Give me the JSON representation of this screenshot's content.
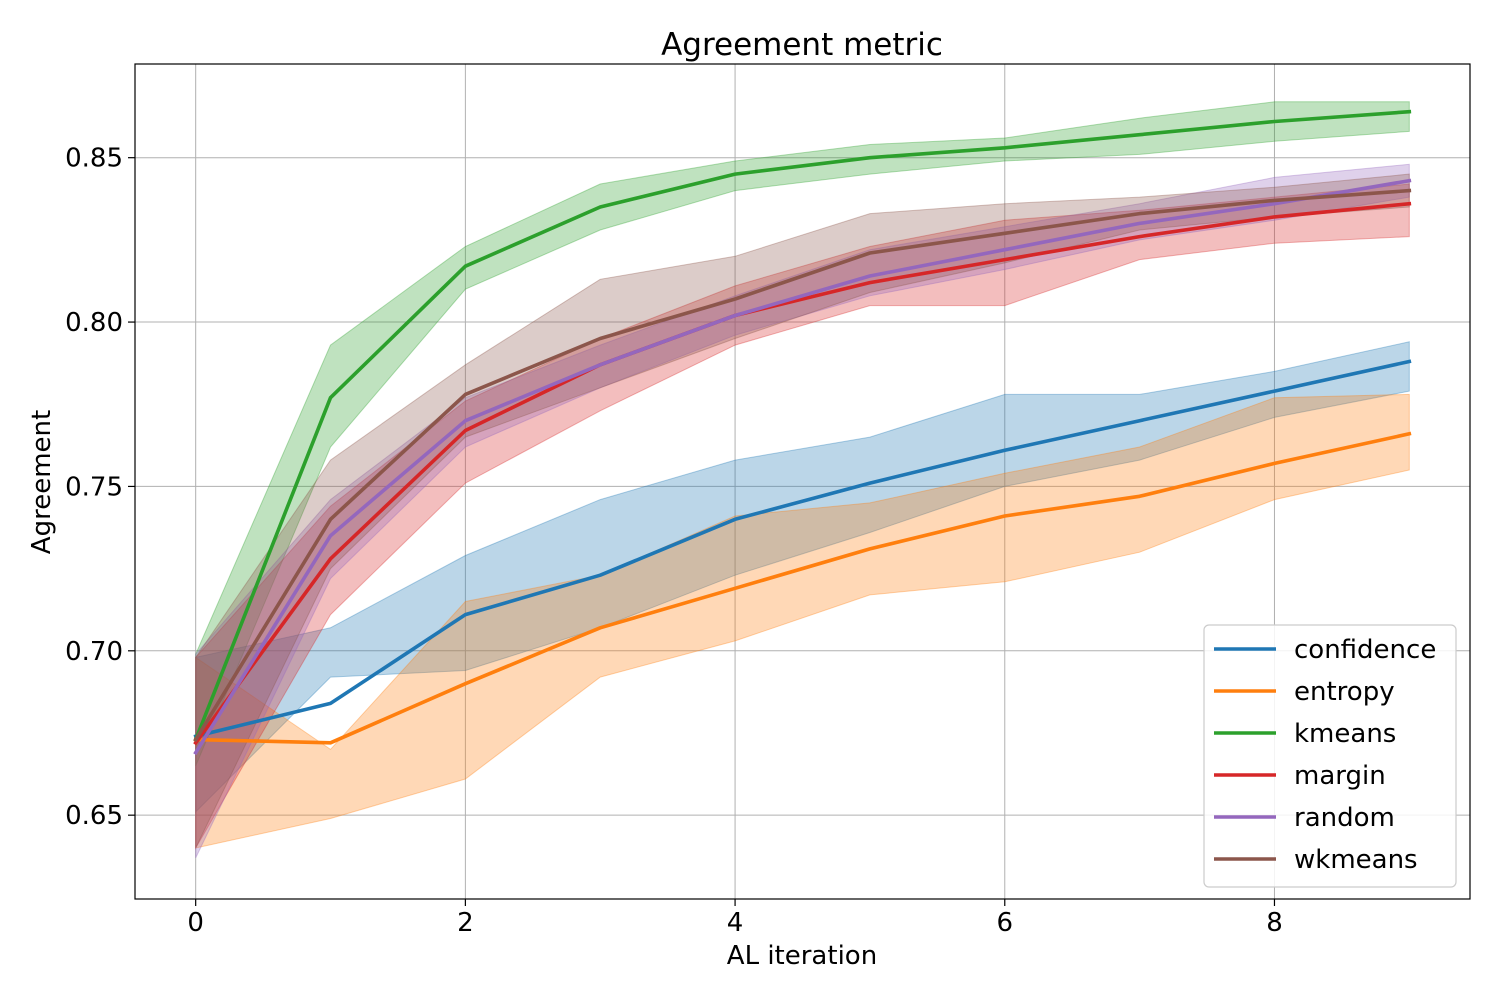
{
  "chart_data": {
    "type": "line",
    "title": "Agreement metric",
    "xlabel": "AL iteration",
    "ylabel": "Agreement",
    "xlim": [
      -0.45,
      9.45
    ],
    "ylim": [
      0.6245,
      0.8785
    ],
    "xticks": [
      0,
      2,
      4,
      6,
      8
    ],
    "xtick_labels": [
      "0",
      "2",
      "4",
      "6",
      "8"
    ],
    "yticks": [
      0.65,
      0.7,
      0.75,
      0.8,
      0.85
    ],
    "ytick_labels": [
      "0.65",
      "0.70",
      "0.75",
      "0.80",
      "0.85"
    ],
    "grid": true,
    "legend_position": "bottom-right",
    "x": [
      0,
      1,
      2,
      3,
      4,
      5,
      6,
      7,
      8,
      9
    ],
    "series": [
      {
        "name": "confidence",
        "color": "#1f77b4",
        "values": [
          0.674,
          0.684,
          0.711,
          0.723,
          0.74,
          0.751,
          0.761,
          0.77,
          0.779,
          0.788
        ],
        "upper": [
          0.698,
          0.707,
          0.729,
          0.746,
          0.758,
          0.765,
          0.778,
          0.778,
          0.785,
          0.794
        ],
        "lower": [
          0.651,
          0.692,
          0.694,
          0.707,
          0.723,
          0.736,
          0.75,
          0.758,
          0.771,
          0.779
        ]
      },
      {
        "name": "entropy",
        "color": "#ff7f0e",
        "values": [
          0.673,
          0.672,
          0.69,
          0.707,
          0.719,
          0.731,
          0.741,
          0.747,
          0.757,
          0.766
        ],
        "upper": [
          0.698,
          0.67,
          0.715,
          0.723,
          0.741,
          0.745,
          0.754,
          0.762,
          0.777,
          0.778
        ],
        "lower": [
          0.64,
          0.649,
          0.661,
          0.692,
          0.703,
          0.717,
          0.721,
          0.73,
          0.746,
          0.755
        ]
      },
      {
        "name": "kmeans",
        "color": "#2ca02c",
        "values": [
          0.673,
          0.777,
          0.817,
          0.835,
          0.845,
          0.85,
          0.853,
          0.857,
          0.861,
          0.864
        ],
        "upper": [
          0.699,
          0.793,
          0.823,
          0.842,
          0.849,
          0.854,
          0.856,
          0.862,
          0.867,
          0.867
        ],
        "lower": [
          0.665,
          0.762,
          0.81,
          0.828,
          0.84,
          0.845,
          0.849,
          0.851,
          0.855,
          0.858
        ]
      },
      {
        "name": "margin",
        "color": "#d62728",
        "values": [
          0.672,
          0.728,
          0.767,
          0.787,
          0.802,
          0.812,
          0.819,
          0.826,
          0.832,
          0.836
        ],
        "upper": [
          0.698,
          0.744,
          0.776,
          0.795,
          0.811,
          0.823,
          0.831,
          0.834,
          0.838,
          0.842
        ],
        "lower": [
          0.64,
          0.711,
          0.751,
          0.773,
          0.793,
          0.805,
          0.805,
          0.819,
          0.824,
          0.826
        ]
      },
      {
        "name": "random",
        "color": "#9467bd",
        "values": [
          0.669,
          0.735,
          0.77,
          0.787,
          0.802,
          0.814,
          0.822,
          0.83,
          0.836,
          0.843
        ],
        "upper": [
          0.699,
          0.746,
          0.777,
          0.793,
          0.808,
          0.822,
          0.829,
          0.836,
          0.844,
          0.848
        ],
        "lower": [
          0.637,
          0.722,
          0.762,
          0.78,
          0.796,
          0.808,
          0.816,
          0.825,
          0.831,
          0.838
        ]
      },
      {
        "name": "wkmeans",
        "color": "#8c564b",
        "values": [
          0.673,
          0.74,
          0.778,
          0.795,
          0.807,
          0.821,
          0.827,
          0.833,
          0.837,
          0.84
        ],
        "upper": [
          0.698,
          0.758,
          0.787,
          0.813,
          0.82,
          0.833,
          0.836,
          0.838,
          0.841,
          0.845
        ],
        "lower": [
          0.64,
          0.725,
          0.765,
          0.78,
          0.795,
          0.809,
          0.818,
          0.828,
          0.832,
          0.835
        ]
      }
    ]
  }
}
